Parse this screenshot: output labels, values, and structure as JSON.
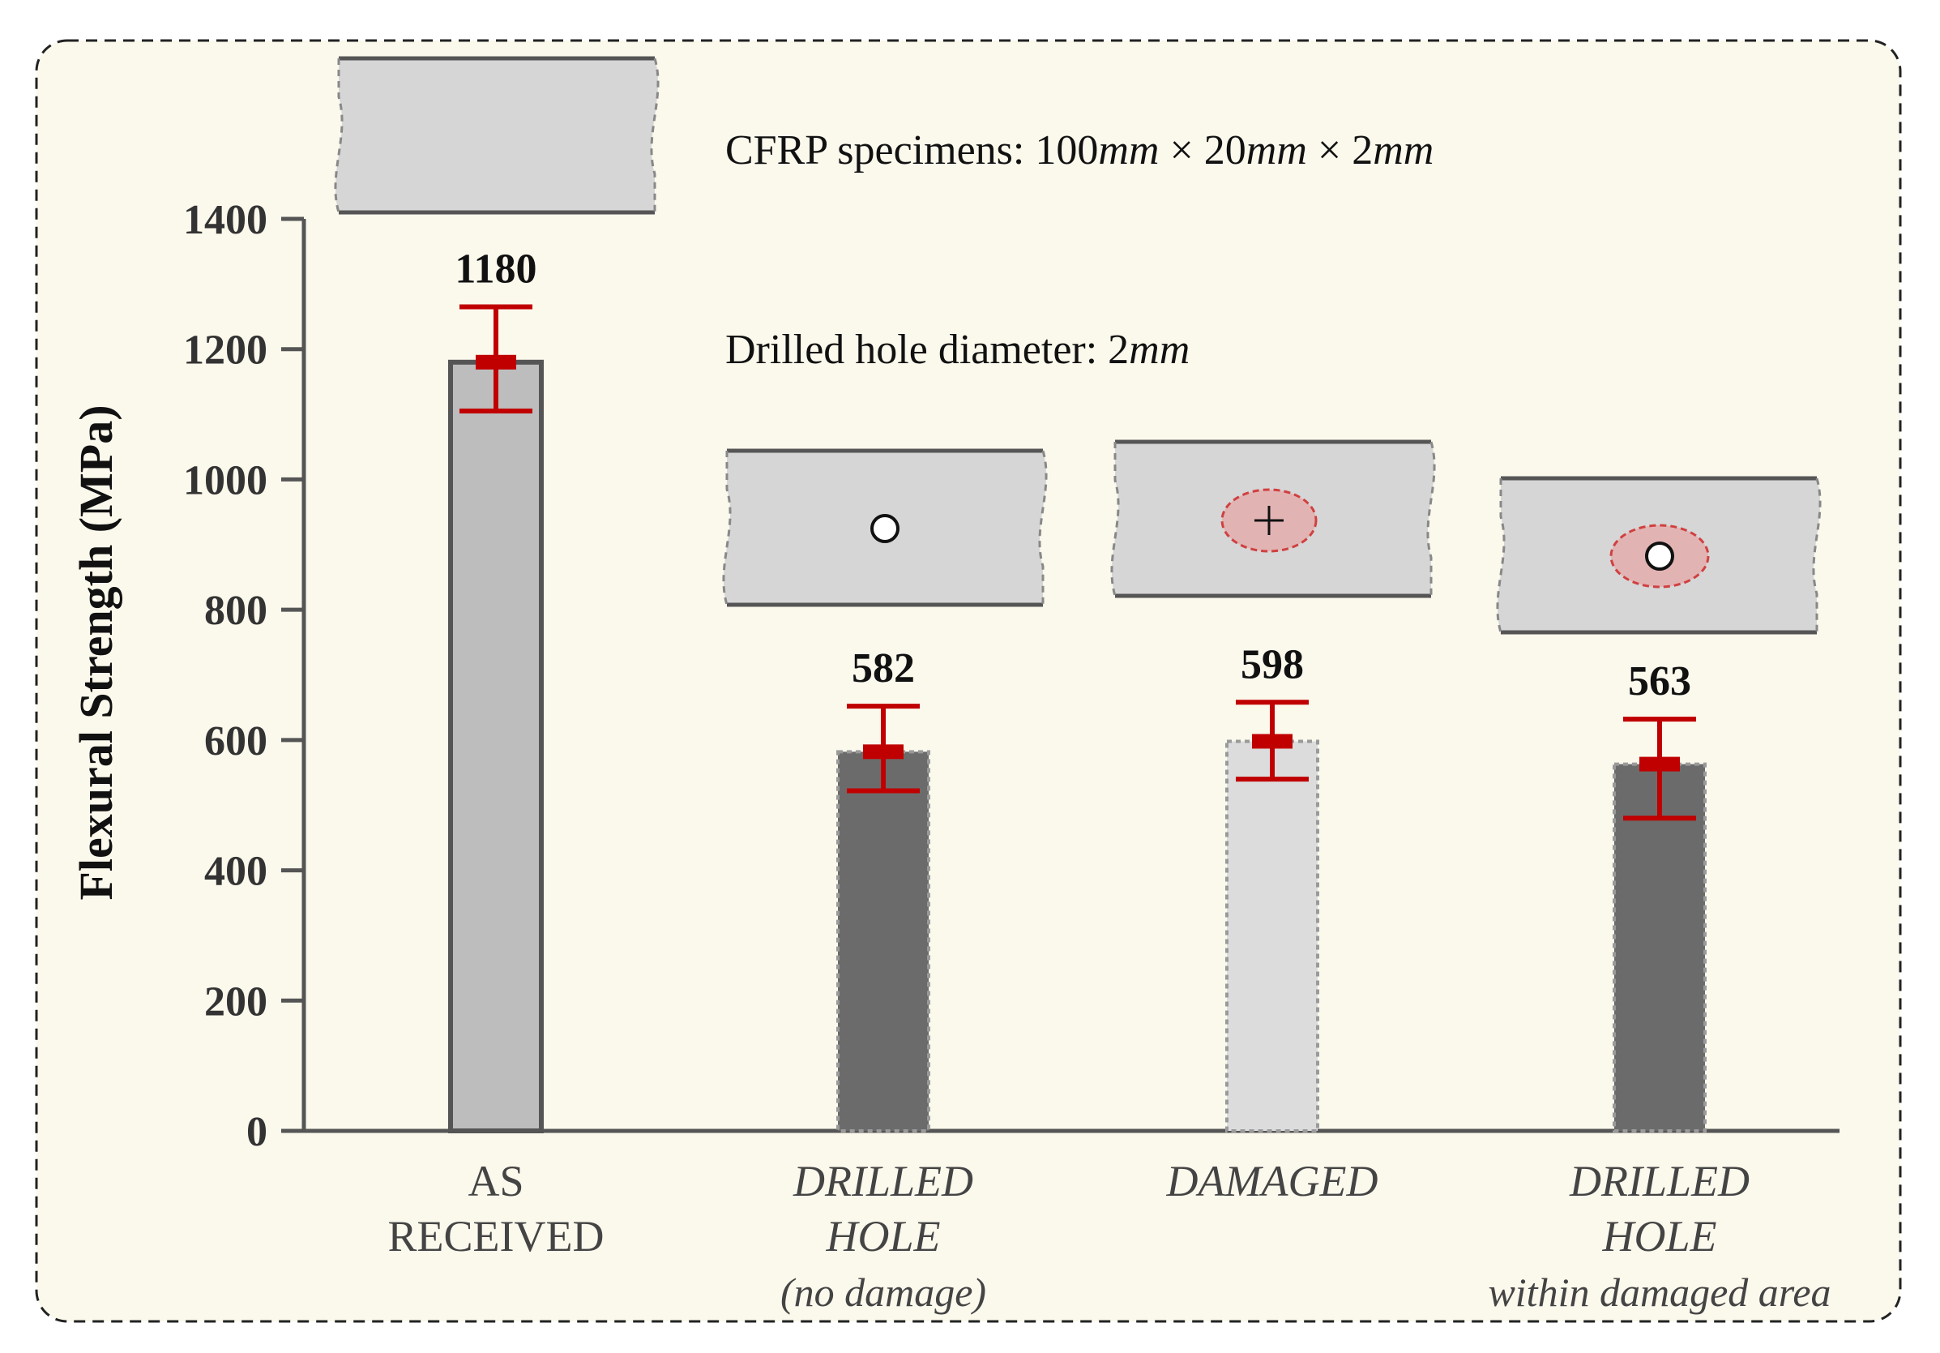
{
  "chart_data": {
    "type": "bar",
    "ylabel": "Flexural Strength (MPa)",
    "ylim": [
      0,
      1400
    ],
    "yticks": [
      0,
      200,
      400,
      600,
      800,
      1000,
      1200,
      1400
    ],
    "grid": false,
    "legend": "none",
    "annotations": {
      "specimens": "CFRP specimens: 100mm × 20mm × 2mm",
      "hole": "Drilled hole diameter: 2mm"
    },
    "bars": [
      {
        "label_lines": [
          "AS",
          "RECEIVED"
        ],
        "label_italic": false,
        "value": 1180,
        "value_label": "1180",
        "err_low": 1105,
        "err_high": 1265,
        "fill": "#bdbdbd",
        "outline": "solid",
        "icon": "plain"
      },
      {
        "label_lines": [
          "DRILLED",
          "HOLE",
          "(no damage)"
        ],
        "label_italic": true,
        "value": 582,
        "value_label": "582",
        "err_low": 522,
        "err_high": 652,
        "fill": "#6b6b6b",
        "outline": "dotted",
        "icon": "hole"
      },
      {
        "label_lines": [
          "DAMAGED"
        ],
        "label_italic": true,
        "value": 598,
        "value_label": "598",
        "err_low": 540,
        "err_high": 658,
        "fill": "#dcdcdc",
        "outline": "dotted",
        "icon": "damage"
      },
      {
        "label_lines": [
          "DRILLED",
          "HOLE",
          "within damaged area"
        ],
        "label_italic": true,
        "value": 563,
        "value_label": "563",
        "err_low": 480,
        "err_high": 632,
        "fill": "#6b6b6b",
        "outline": "dotted",
        "icon": "hole-in-damage"
      }
    ],
    "colors": {
      "panel_bg": "#fbf8ec",
      "axis": "#555555",
      "error_bar": "#c00000",
      "damage_fill": "#e2b3b3",
      "damage_stroke": "#d04040",
      "specimen_fill": "#d6d6d6",
      "specimen_edge": "#555555"
    }
  }
}
